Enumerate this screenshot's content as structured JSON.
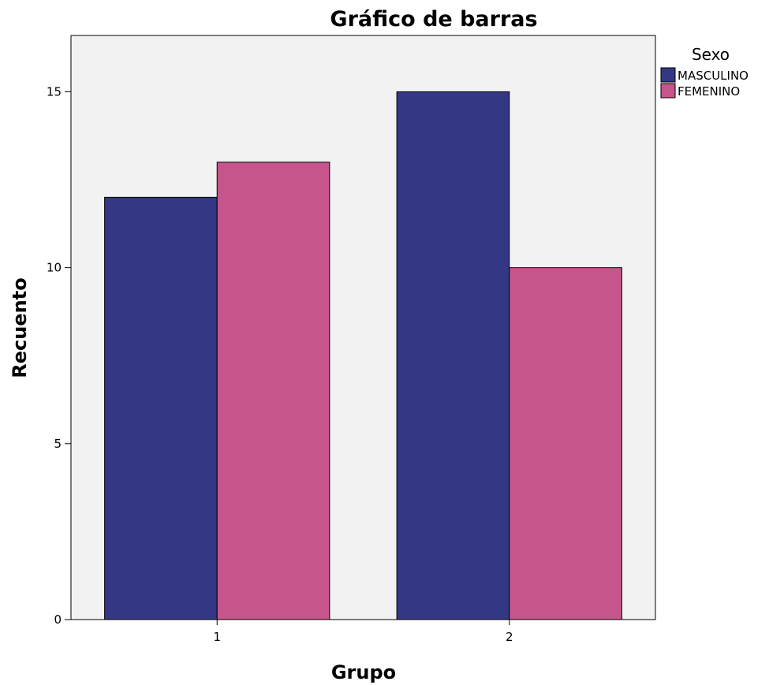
{
  "chart_data": {
    "type": "bar",
    "title": "Gráfico de barras",
    "xlabel": "Grupo",
    "ylabel": "Recuento",
    "categories": [
      "1",
      "2"
    ],
    "series": [
      {
        "name": "MASCULINO",
        "values": [
          12,
          15
        ],
        "color": "#343884"
      },
      {
        "name": "FEMENINO",
        "values": [
          13,
          10
        ],
        "color": "#c6558b"
      }
    ],
    "ylim": [
      0,
      16.6
    ],
    "yticks": [
      0,
      5,
      10,
      15
    ],
    "grid": false,
    "plot_background": "#f2f2f2",
    "legend": {
      "title": "Sexo",
      "placement": "top-right-outside"
    }
  }
}
